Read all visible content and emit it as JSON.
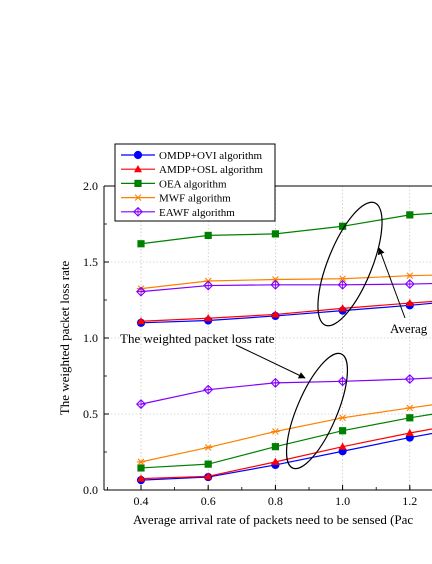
{
  "chart_data": {
    "type": "line",
    "title": "",
    "xlabel": "Average arrival rate of  packets need to be sensed (Pac",
    "ylabel": "The weighted packet loss rate",
    "xlim": [
      0.3,
      1.3
    ],
    "ylim": [
      0.0,
      2.0
    ],
    "x_ticks": [
      "0.4",
      "0.6",
      "0.8",
      "1.0",
      "1.2"
    ],
    "y_ticks": [
      "0.0",
      "0.5",
      "1.0",
      "1.5",
      "2.0"
    ],
    "grid": true,
    "legend_position": "top-left, above plot",
    "annotations": [
      {
        "id": "avg",
        "text": "Averag"
      },
      {
        "id": "weighted",
        "text": "The weighted packet loss rate"
      }
    ],
    "x": [
      0.4,
      0.6,
      0.8,
      1.0,
      1.2,
      1.3
    ],
    "series": [
      {
        "name": "OMDP+OVI algorithm",
        "group": "average",
        "color": "#0000ff",
        "marker": "circle",
        "values": [
          1.1,
          1.115,
          1.145,
          1.18,
          1.215,
          1.235
        ]
      },
      {
        "name": "AMDP+OSL algorithm",
        "group": "average",
        "color": "#ff0000",
        "marker": "triangle",
        "values": [
          1.11,
          1.13,
          1.155,
          1.195,
          1.23,
          1.245
        ]
      },
      {
        "name": "OEA algorithm",
        "group": "average",
        "color": "#008000",
        "marker": "square",
        "values": [
          1.62,
          1.675,
          1.685,
          1.735,
          1.81,
          1.825
        ]
      },
      {
        "name": "MWF algorithm",
        "group": "average",
        "color": "#ff8000",
        "marker": "asterisk",
        "values": [
          1.325,
          1.375,
          1.385,
          1.39,
          1.41,
          1.415
        ]
      },
      {
        "name": "EAWF algorithm",
        "group": "average",
        "color": "#8000ff",
        "marker": "diamond",
        "values": [
          1.305,
          1.345,
          1.35,
          1.35,
          1.355,
          1.36
        ]
      },
      {
        "name": "OMDP+OVI algorithm",
        "group": "weighted",
        "color": "#0000ff",
        "marker": "circle",
        "values": [
          0.065,
          0.085,
          0.165,
          0.255,
          0.345,
          0.385
        ]
      },
      {
        "name": "AMDP+OSL algorithm",
        "group": "weighted",
        "color": "#ff0000",
        "marker": "triangle",
        "values": [
          0.075,
          0.09,
          0.185,
          0.285,
          0.375,
          0.415
        ]
      },
      {
        "name": "OEA algorithm",
        "group": "weighted",
        "color": "#008000",
        "marker": "square",
        "values": [
          0.145,
          0.17,
          0.285,
          0.39,
          0.475,
          0.51
        ]
      },
      {
        "name": "MWF algorithm",
        "group": "weighted",
        "color": "#ff8000",
        "marker": "asterisk",
        "values": [
          0.185,
          0.28,
          0.385,
          0.475,
          0.54,
          0.57
        ]
      },
      {
        "name": "EAWF algorithm",
        "group": "weighted",
        "color": "#8000ff",
        "marker": "diamond",
        "values": [
          0.565,
          0.66,
          0.705,
          0.715,
          0.73,
          0.74
        ]
      }
    ]
  }
}
